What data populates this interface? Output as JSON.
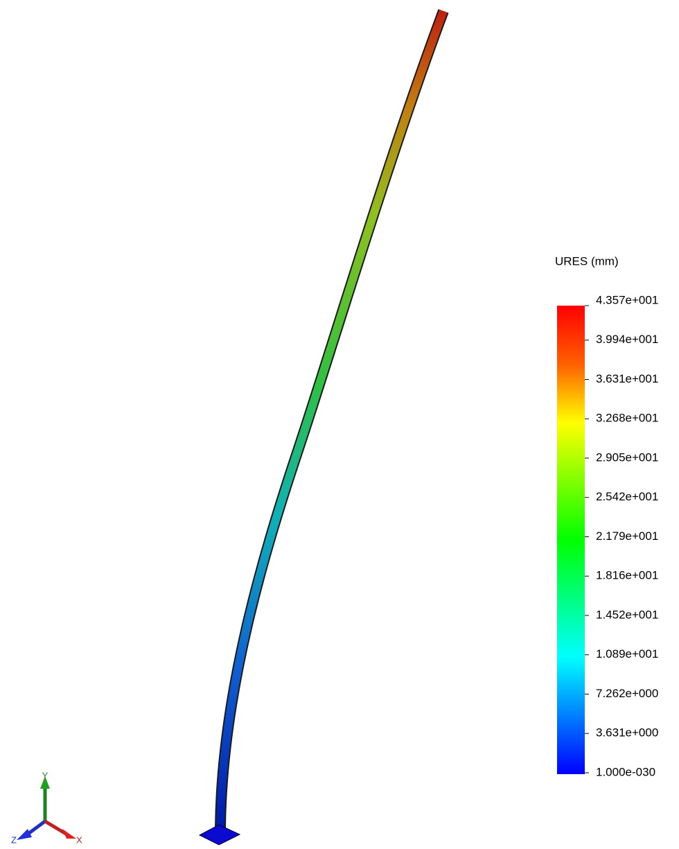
{
  "legend": {
    "title": "URES (mm)",
    "ticks": [
      "4.357e+001",
      "3.994e+001",
      "3.631e+001",
      "3.268e+001",
      "2.905e+001",
      "2.542e+001",
      "2.179e+001",
      "1.816e+001",
      "1.452e+001",
      "1.089e+001",
      "7.262e+000",
      "3.631e+000",
      "1.000e-030"
    ]
  },
  "triad": {
    "y": "Y",
    "z": "Z",
    "x": "X"
  }
}
